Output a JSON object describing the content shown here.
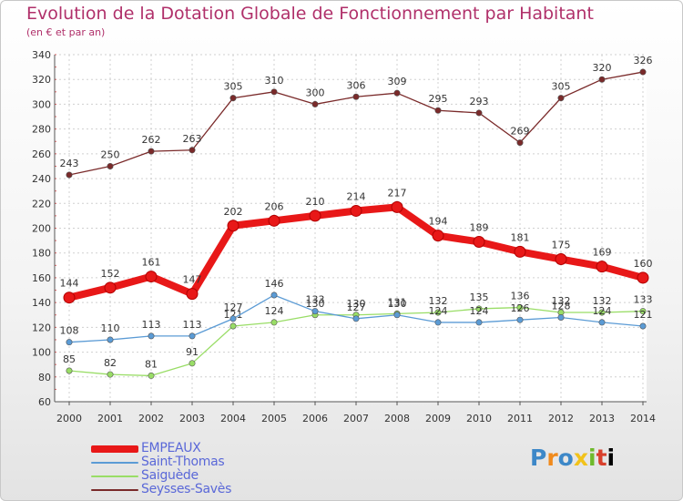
{
  "title": "Evolution de la Dotation Globale de Fonctionnement par Habitant",
  "subtitle": "(en € et par an)",
  "logo": [
    "P",
    "r",
    "o",
    "x",
    "i",
    "t",
    "i"
  ],
  "chart_data": {
    "type": "line",
    "x": [
      2000,
      2001,
      2002,
      2003,
      2004,
      2005,
      2006,
      2007,
      2008,
      2009,
      2010,
      2011,
      2012,
      2013,
      2014
    ],
    "ylim": [
      60,
      340
    ],
    "yticks": [
      60,
      80,
      100,
      120,
      140,
      160,
      180,
      200,
      220,
      240,
      260,
      280,
      300,
      320,
      340
    ],
    "grid": true,
    "legend_position": "bottom-left",
    "series": [
      {
        "name": "EMPEAUX",
        "color": "#e81818",
        "values": [
          144,
          152,
          161,
          147,
          202,
          206,
          210,
          214,
          217,
          194,
          189,
          181,
          175,
          169,
          160
        ]
      },
      {
        "name": "Saint-Thomas",
        "color": "#5b9bd5",
        "values": [
          108,
          110,
          113,
          113,
          127,
          146,
          133,
          127,
          130,
          124,
          124,
          126,
          128,
          124,
          121
        ]
      },
      {
        "name": "Saiguède",
        "color": "#99dd66",
        "values": [
          85,
          82,
          81,
          91,
          121,
          124,
          130,
          130,
          131,
          132,
          135,
          136,
          132,
          132,
          133
        ]
      },
      {
        "name": "Seysses-Savès",
        "color": "#7a2a2a",
        "values": [
          243,
          250,
          262,
          263,
          305,
          310,
          300,
          306,
          309,
          295,
          293,
          269,
          305,
          320,
          326
        ]
      }
    ]
  }
}
